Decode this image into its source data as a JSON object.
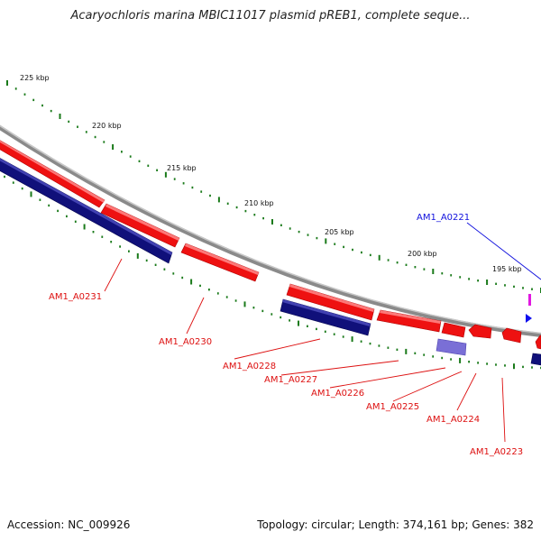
{
  "title": "Acaryochloris marina MBIC11017 plasmid pREB1, complete seque...",
  "footer": {
    "accession": "Accession: NC_009926",
    "topology": "Topology: circular; Length: 374,161 bp; Genes: 382"
  },
  "scale_labels": [
    "225 kbp",
    "220 kbp",
    "215 kbp",
    "210 kbp",
    "205 kbp",
    "200 kbp",
    "195 kbp"
  ],
  "gene_labels": [
    {
      "text": "AM1_A0221",
      "strand": "forward"
    },
    {
      "text": "AM1_A0231",
      "strand": "reverse"
    },
    {
      "text": "AM1_A0230",
      "strand": "reverse"
    },
    {
      "text": "AM1_A0228",
      "strand": "reverse"
    },
    {
      "text": "AM1_A0227",
      "strand": "reverse"
    },
    {
      "text": "AM1_A0226",
      "strand": "reverse"
    },
    {
      "text": "AM1_A0225",
      "strand": "reverse"
    },
    {
      "text": "AM1_A0224",
      "strand": "reverse"
    },
    {
      "text": "AM1_A0223",
      "strand": "reverse"
    }
  ],
  "colors": {
    "backbone": "#8a8a8a",
    "cds": "#ee1111",
    "gene_blue": "#10107a",
    "gene_light": "#7a6fd6",
    "forward_label": "#1010dd",
    "reverse_label": "#dd1010",
    "ticks": "#1a7a1a"
  }
}
